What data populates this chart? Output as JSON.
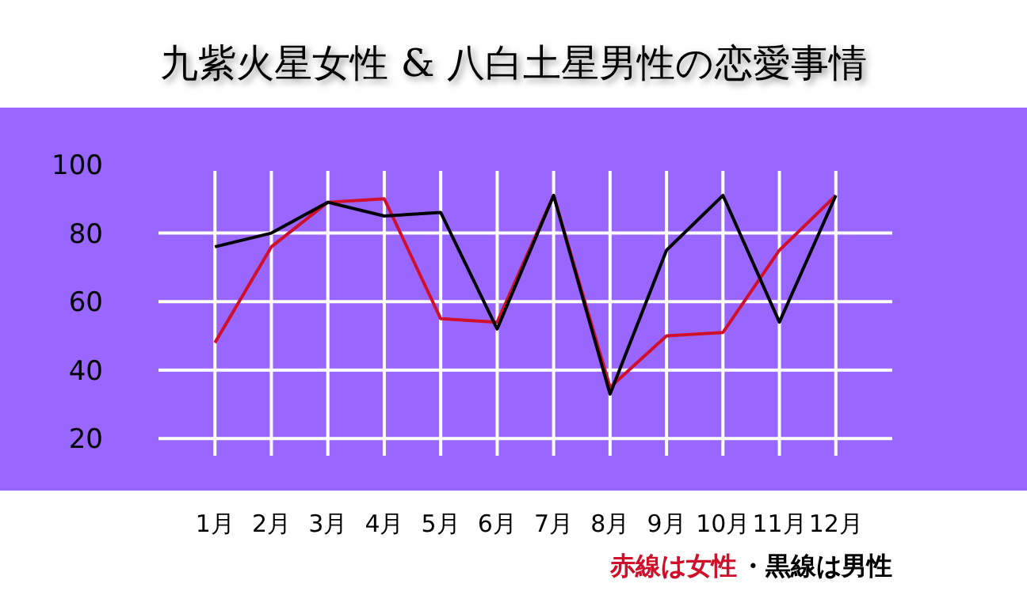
{
  "chart_data": {
    "type": "line",
    "title": "九紫火星女性 & 八白土星男性の恋愛事情",
    "categories": [
      "1月",
      "2月",
      "3月",
      "4月",
      "5月",
      "6月",
      "7月",
      "8月",
      "9月",
      "10月",
      "11月",
      "12月"
    ],
    "series": [
      {
        "color": "#d0102a",
        "values": [
          48,
          76,
          89,
          90,
          55,
          54,
          91,
          35,
          50,
          51,
          75,
          91
        ]
      },
      {
        "color": "#000000",
        "values": [
          76,
          80,
          89,
          85,
          86,
          52,
          91,
          33,
          75,
          91,
          54,
          91
        ]
      }
    ],
    "ylim": [
      15,
      100
    ],
    "yticks": [
      20,
      40,
      60,
      80,
      100
    ],
    "grid": true,
    "marker": "none",
    "line_style": "solid",
    "annotations": [
      "赤線は女性",
      "・黒線は男性"
    ]
  }
}
